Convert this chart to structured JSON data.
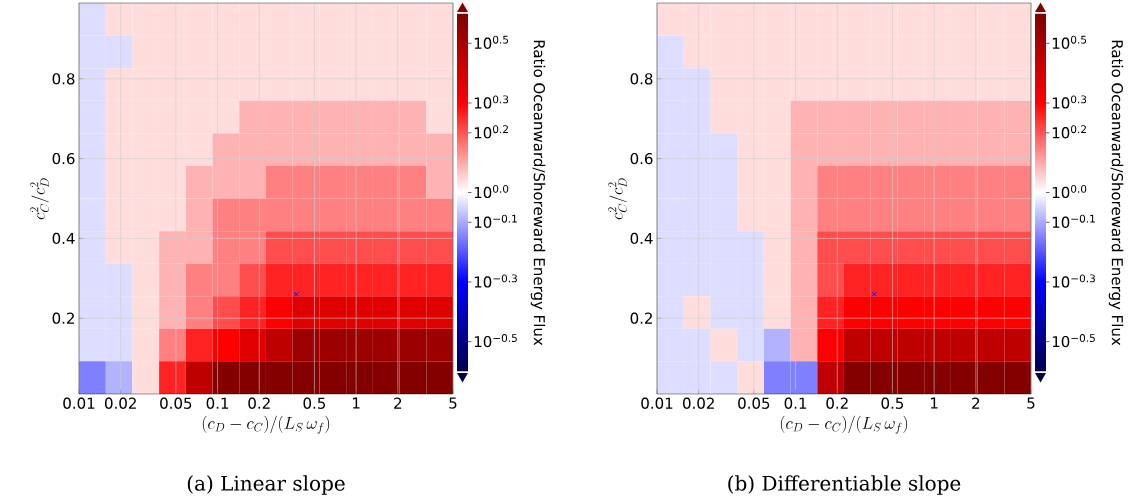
{
  "chart_data": [
    {
      "type": "heatmap",
      "xlabel": "(c_D - c_C)/(L_S\\,\\omega_f)",
      "ylabel": "c_C^2/c_D^2",
      "clabel": "Ratio Oceanward/Shoreward Energy Flux",
      "annotations": [
        "(a) Linear slope"
      ],
      "x": [
        0.0125,
        0.0195,
        0.0303,
        0.0473,
        0.0737,
        0.115,
        0.179,
        0.279,
        0.435,
        0.679,
        1.058,
        1.649,
        2.57,
        4.008
      ],
      "y": [
        0.949,
        0.867,
        0.786,
        0.704,
        0.622,
        0.541,
        0.459,
        0.377,
        0.296,
        0.214,
        0.133,
        0.051
      ],
      "xlim": [
        0.01,
        5
      ],
      "ylim": [
        0.01,
        0.99
      ],
      "log": "x",
      "xticks": [
        0.01,
        0.02,
        0.05,
        0.1,
        0.2,
        0.5,
        1,
        2,
        5
      ],
      "yticks": [
        0.2,
        0.4,
        0.6,
        0.8
      ],
      "grid": true,
      "clim": [
        -0.6,
        0.6
      ],
      "cticks": [
        {
          "value": -0.5,
          "label": "10$^{−0.5}$"
        },
        {
          "value": -0.3,
          "label": "10$^{−0.3}$"
        },
        {
          "value": -0.1,
          "label": "10$^{−0.1}$"
        },
        {
          "value": 0,
          "label": "10$^{0.0}$"
        },
        {
          "value": 0.2,
          "label": "10$^{0.2}$"
        },
        {
          "value": 0.3,
          "label": "10$^{0.3}$"
        },
        {
          "value": 0.5,
          "label": "10$^{0.5}$"
        }
      ],
      "cells": [
        [
          -0.04,
          0.04,
          0.04,
          0.04,
          0.04,
          0.04,
          0.04,
          0.04,
          0.04,
          0.04,
          0.04,
          0.04,
          0.04,
          0.04
        ],
        [
          -0.04,
          -0.04,
          0.04,
          0.04,
          0.04,
          0.04,
          0.04,
          0.04,
          0.04,
          0.04,
          0.04,
          0.04,
          0.04,
          0.04
        ],
        [
          -0.04,
          0.04,
          0.04,
          0.04,
          0.04,
          0.04,
          0.04,
          0.04,
          0.04,
          0.04,
          0.04,
          0.04,
          0.04,
          0.04
        ],
        [
          -0.04,
          0.04,
          0.04,
          0.04,
          0.04,
          0.04,
          0.09,
          0.09,
          0.09,
          0.09,
          0.09,
          0.09,
          0.09,
          0.04
        ],
        [
          -0.04,
          0.04,
          0.04,
          0.04,
          0.04,
          0.09,
          0.09,
          0.09,
          0.09,
          0.09,
          0.09,
          0.09,
          0.09,
          0.09
        ],
        [
          -0.04,
          0.04,
          0.04,
          0.04,
          0.09,
          0.09,
          0.09,
          0.15,
          0.15,
          0.15,
          0.15,
          0.15,
          0.15,
          0.09
        ],
        [
          -0.04,
          0.04,
          0.04,
          0.04,
          0.09,
          0.15,
          0.15,
          0.15,
          0.15,
          0.15,
          0.15,
          0.15,
          0.15,
          0.15
        ],
        [
          -0.04,
          0.04,
          0.04,
          0.09,
          0.09,
          0.15,
          0.15,
          0.21,
          0.21,
          0.21,
          0.21,
          0.21,
          0.21,
          0.21
        ],
        [
          -0.04,
          -0.04,
          0.04,
          0.09,
          0.15,
          0.15,
          0.21,
          0.26,
          0.26,
          0.26,
          0.26,
          0.26,
          0.26,
          0.26
        ],
        [
          -0.04,
          -0.04,
          0.04,
          0.09,
          0.15,
          0.21,
          0.26,
          0.3,
          0.37,
          0.37,
          0.37,
          0.37,
          0.37,
          0.37
        ],
        [
          -0.04,
          -0.04,
          0.04,
          0.15,
          0.26,
          0.3,
          0.37,
          0.45,
          0.53,
          0.53,
          0.53,
          0.53,
          0.53,
          0.53
        ],
        [
          -0.15,
          -0.09,
          0.04,
          0.26,
          0.45,
          0.59,
          0.59,
          0.59,
          0.59,
          0.59,
          0.59,
          0.59,
          0.59,
          0.59
        ]
      ],
      "series": [
        {
          "type": "scatter",
          "x": [
            0.37
          ],
          "values": [
            0.26
          ],
          "color": "#0000ff",
          "marker": "cross"
        }
      ]
    },
    {
      "type": "heatmap",
      "xlabel": "(c_D - c_C)/(L_S\\,\\omega_f)",
      "ylabel": "c_C^2/c_D^2",
      "clabel": "Ratio Oceanward/Shoreward Energy Flux",
      "annotations": [
        "(b) Differentiable slope"
      ],
      "x": [
        0.0125,
        0.0195,
        0.0303,
        0.0473,
        0.0737,
        0.115,
        0.179,
        0.279,
        0.435,
        0.679,
        1.058,
        1.649,
        2.57,
        4.008
      ],
      "y": [
        0.949,
        0.867,
        0.786,
        0.704,
        0.622,
        0.541,
        0.459,
        0.377,
        0.296,
        0.214,
        0.133,
        0.051
      ],
      "xlim": [
        0.01,
        5
      ],
      "ylim": [
        0.01,
        0.99
      ],
      "log": "x",
      "xticks": [
        0.01,
        0.02,
        0.05,
        0.1,
        0.2,
        0.5,
        1,
        2,
        5
      ],
      "yticks": [
        0.2,
        0.4,
        0.6,
        0.8
      ],
      "grid": true,
      "clim": [
        -0.6,
        0.6
      ],
      "cticks": [
        {
          "value": -0.5,
          "label": "10$^{−0.5}$"
        },
        {
          "value": -0.3,
          "label": "10$^{−0.3}$"
        },
        {
          "value": -0.1,
          "label": "10$^{−0.1}$"
        },
        {
          "value": 0,
          "label": "10$^{0.0}$"
        },
        {
          "value": 0.2,
          "label": "10$^{0.2}$"
        },
        {
          "value": 0.3,
          "label": "10$^{0.3}$"
        },
        {
          "value": 0.5,
          "label": "10$^{0.5}$"
        }
      ],
      "cells": [
        [
          0.04,
          0.04,
          0.04,
          0.04,
          0.04,
          0.04,
          0.04,
          0.04,
          0.04,
          0.04,
          0.04,
          0.04,
          0.04,
          0.04
        ],
        [
          -0.04,
          0.04,
          0.04,
          0.04,
          0.04,
          0.04,
          0.04,
          0.04,
          0.04,
          0.04,
          0.04,
          0.04,
          0.04,
          0.04
        ],
        [
          -0.04,
          -0.04,
          0.04,
          0.04,
          0.04,
          0.04,
          0.04,
          0.04,
          0.04,
          0.04,
          0.04,
          0.04,
          0.04,
          0.04
        ],
        [
          -0.04,
          -0.04,
          0.04,
          0.04,
          0.04,
          0.09,
          0.09,
          0.09,
          0.09,
          0.09,
          0.09,
          0.09,
          0.09,
          0.09
        ],
        [
          -0.04,
          -0.04,
          -0.04,
          0.04,
          0.04,
          0.09,
          0.09,
          0.09,
          0.09,
          0.09,
          0.09,
          0.09,
          0.09,
          0.09
        ],
        [
          -0.04,
          -0.04,
          -0.04,
          0.04,
          0.04,
          0.09,
          0.15,
          0.15,
          0.15,
          0.15,
          0.15,
          0.15,
          0.15,
          0.15
        ],
        [
          -0.04,
          -0.04,
          -0.04,
          0.04,
          0.04,
          0.09,
          0.15,
          0.15,
          0.15,
          0.15,
          0.15,
          0.15,
          0.15,
          0.15
        ],
        [
          -0.04,
          -0.04,
          -0.04,
          -0.04,
          0.04,
          0.09,
          0.21,
          0.21,
          0.21,
          0.21,
          0.21,
          0.21,
          0.21,
          0.21
        ],
        [
          -0.04,
          -0.04,
          -0.04,
          -0.04,
          0.04,
          0.09,
          0.21,
          0.26,
          0.26,
          0.26,
          0.26,
          0.26,
          0.26,
          0.26
        ],
        [
          -0.04,
          0.04,
          -0.04,
          -0.04,
          0.04,
          0.09,
          0.26,
          0.3,
          0.3,
          0.3,
          0.3,
          0.3,
          0.3,
          0.3
        ],
        [
          -0.04,
          -0.04,
          0.04,
          -0.04,
          -0.09,
          0.09,
          0.3,
          0.45,
          0.45,
          0.45,
          0.45,
          0.45,
          0.45,
          0.45
        ],
        [
          -0.04,
          -0.04,
          -0.04,
          0.04,
          -0.15,
          -0.15,
          0.45,
          0.59,
          0.59,
          0.59,
          0.59,
          0.59,
          0.59,
          0.59
        ]
      ],
      "series": [
        {
          "type": "scatter",
          "x": [
            0.37
          ],
          "values": [
            0.26
          ],
          "color": "#0000ff",
          "marker": "cross"
        }
      ]
    }
  ]
}
